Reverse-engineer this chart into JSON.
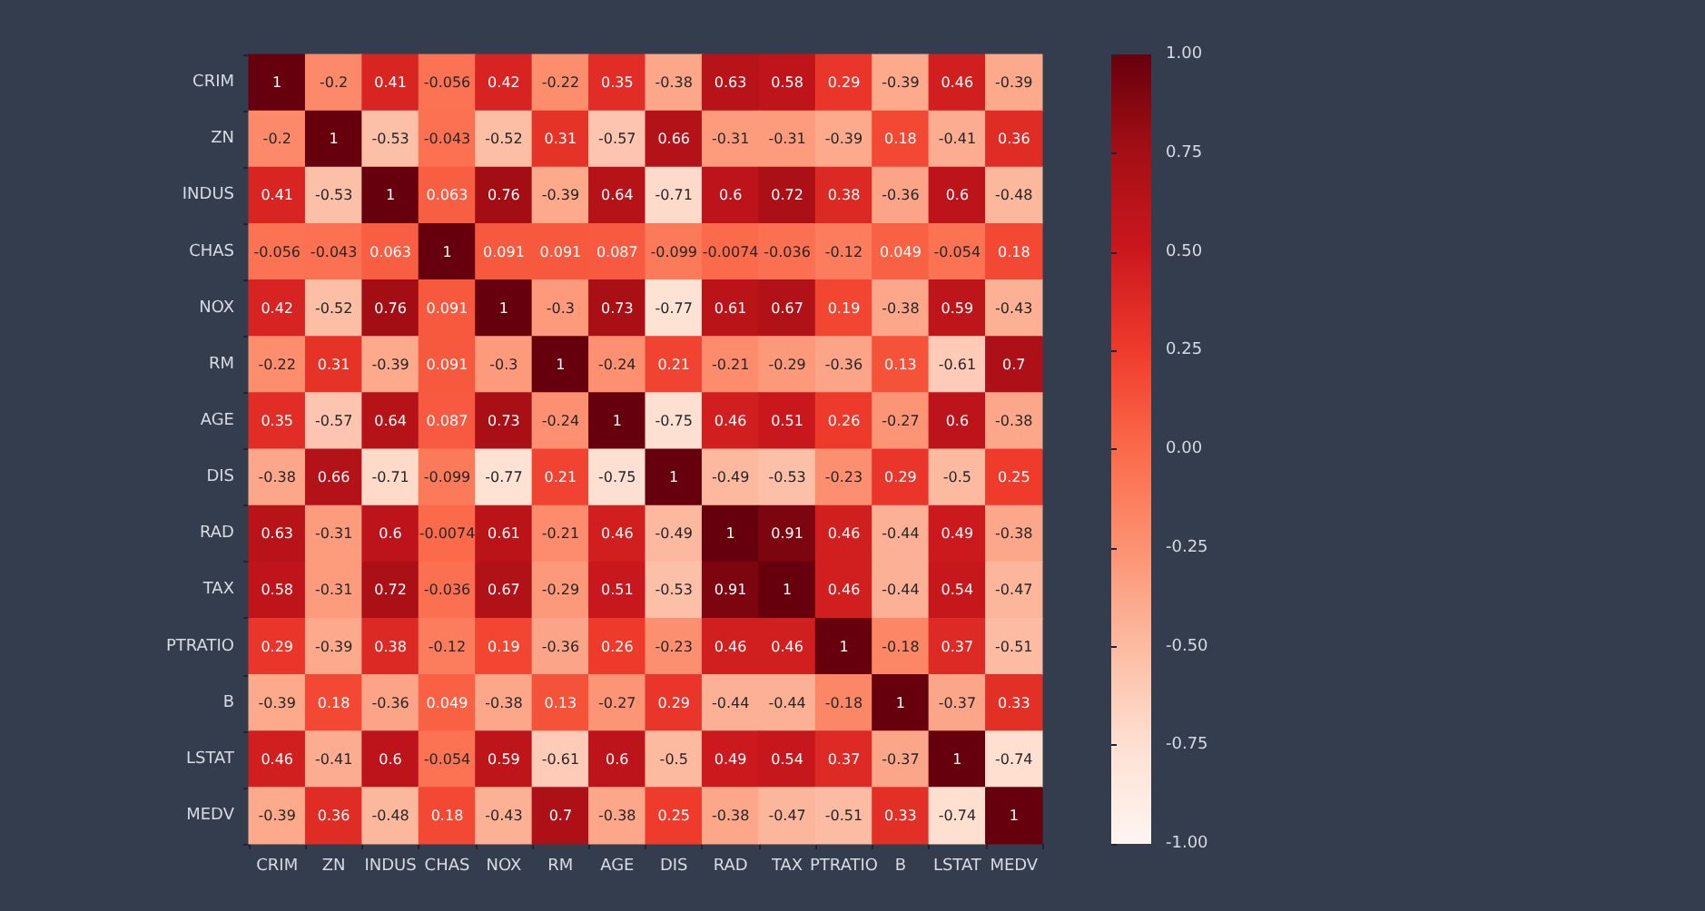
{
  "chart_data": {
    "type": "heatmap",
    "categories": [
      "CRIM",
      "ZN",
      "INDUS",
      "CHAS",
      "NOX",
      "RM",
      "AGE",
      "DIS",
      "RAD",
      "TAX",
      "PTRATIO",
      "B",
      "LSTAT",
      "MEDV"
    ],
    "y_categories": [
      "CRIM",
      "ZN",
      "INDUS",
      "CHAS",
      "NOX",
      "RM",
      "AGE",
      "DIS",
      "RAD",
      "TAX",
      "PTRATIO",
      "B",
      "LSTAT",
      "MEDV"
    ],
    "cells": [
      [
        1,
        -0.2,
        0.41,
        -0.056,
        0.42,
        -0.22,
        0.35,
        -0.38,
        0.63,
        0.58,
        0.29,
        -0.39,
        0.46,
        -0.39
      ],
      [
        -0.2,
        1,
        -0.53,
        -0.043,
        -0.52,
        0.31,
        -0.57,
        0.66,
        -0.31,
        -0.31,
        -0.39,
        0.18,
        -0.41,
        0.36
      ],
      [
        0.41,
        -0.53,
        1,
        0.063,
        0.76,
        -0.39,
        0.64,
        -0.71,
        0.6,
        0.72,
        0.38,
        -0.36,
        0.6,
        -0.48
      ],
      [
        -0.056,
        -0.043,
        0.063,
        1,
        0.091,
        0.091,
        0.087,
        -0.099,
        -0.0074,
        -0.036,
        -0.12,
        0.049,
        -0.054,
        0.18
      ],
      [
        0.42,
        -0.52,
        0.76,
        0.091,
        1,
        -0.3,
        0.73,
        -0.77,
        0.61,
        0.67,
        0.19,
        -0.38,
        0.59,
        -0.43
      ],
      [
        -0.22,
        0.31,
        -0.39,
        0.091,
        -0.3,
        1,
        -0.24,
        0.21,
        -0.21,
        -0.29,
        -0.36,
        0.13,
        -0.61,
        0.7
      ],
      [
        0.35,
        -0.57,
        0.64,
        0.087,
        0.73,
        -0.24,
        1,
        -0.75,
        0.46,
        0.51,
        0.26,
        -0.27,
        0.6,
        -0.38
      ],
      [
        -0.38,
        0.66,
        -0.71,
        -0.099,
        -0.77,
        0.21,
        -0.75,
        1,
        -0.49,
        -0.53,
        -0.23,
        0.29,
        -0.5,
        0.25
      ],
      [
        0.63,
        -0.31,
        0.6,
        -0.0074,
        0.61,
        -0.21,
        0.46,
        -0.49,
        1,
        0.91,
        0.46,
        -0.44,
        0.49,
        -0.38
      ],
      [
        0.58,
        -0.31,
        0.72,
        -0.036,
        0.67,
        -0.29,
        0.51,
        -0.53,
        0.91,
        1,
        0.46,
        -0.44,
        0.54,
        -0.47
      ],
      [
        0.29,
        -0.39,
        0.38,
        -0.12,
        0.19,
        -0.36,
        0.26,
        -0.23,
        0.46,
        0.46,
        1,
        -0.18,
        0.37,
        -0.51
      ],
      [
        -0.39,
        0.18,
        -0.36,
        0.049,
        -0.38,
        0.13,
        -0.27,
        0.29,
        -0.44,
        -0.44,
        -0.18,
        1,
        -0.37,
        0.33
      ],
      [
        0.46,
        -0.41,
        0.6,
        -0.054,
        0.59,
        -0.61,
        0.6,
        -0.5,
        0.49,
        0.54,
        0.37,
        -0.37,
        1,
        -0.74
      ],
      [
        -0.39,
        0.36,
        -0.48,
        0.18,
        -0.43,
        0.7,
        -0.38,
        0.25,
        -0.38,
        -0.47,
        -0.51,
        0.33,
        -0.74,
        1
      ]
    ],
    "data_labels": true,
    "clim": [
      -1,
      1
    ],
    "cticks": [
      {
        "value": -1,
        "label": "-1.00"
      },
      {
        "value": -0.75,
        "label": "-0.75"
      },
      {
        "value": -0.5,
        "label": "-0.50"
      },
      {
        "value": -0.25,
        "label": "-0.25"
      },
      {
        "value": 0,
        "label": "0.00"
      },
      {
        "value": 0.25,
        "label": "0.25"
      },
      {
        "value": 0.5,
        "label": "0.50"
      },
      {
        "value": 0.75,
        "label": "0.75"
      },
      {
        "value": 1,
        "label": "1.00"
      }
    ]
  }
}
